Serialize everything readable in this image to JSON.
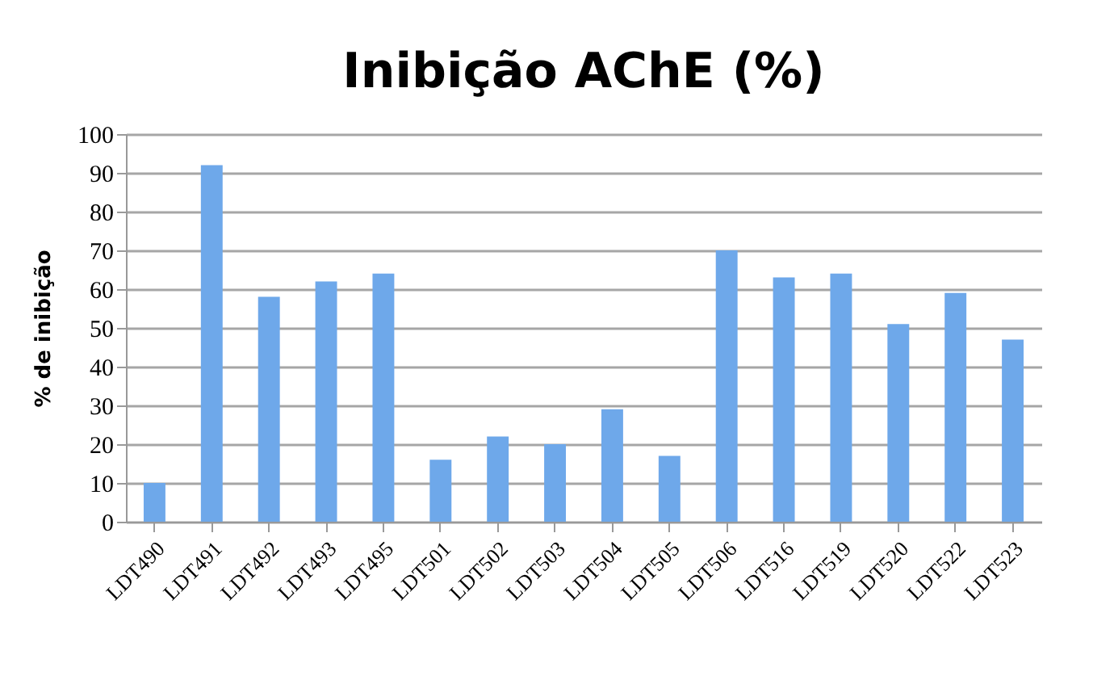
{
  "chart_data": {
    "type": "bar",
    "title": "Inibição AChE (%)",
    "ylabel": "% de inibição",
    "categories": [
      "LDT490",
      "LDT491",
      "LDT492",
      "LDT493",
      "LDT495",
      "LDT501",
      "LDT502",
      "LDT503",
      "LDT504",
      "LDT505",
      "LDT506",
      "LDT516",
      "LDT519",
      "LDT520",
      "LDT522",
      "LDT523"
    ],
    "values": [
      10,
      92,
      58,
      62,
      64,
      16,
      22,
      20,
      29,
      17,
      70,
      63,
      64,
      51,
      59,
      47
    ],
    "color": "#6ea8ea",
    "ylim": [
      0,
      100
    ],
    "yticks": [
      0,
      10,
      20,
      30,
      40,
      50,
      60,
      70,
      80,
      90,
      100
    ],
    "grid": "y"
  }
}
